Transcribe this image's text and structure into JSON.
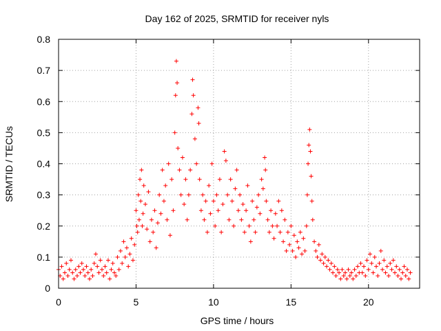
{
  "chart_data": {
    "type": "scatter",
    "title": "Day 162 of 2025, SRMTID for receiver nyls",
    "xlabel": "GPS time / hours",
    "ylabel": "SRMTID / TECUs",
    "xlim": [
      0,
      23.3
    ],
    "ylim": [
      0,
      0.8
    ],
    "xticks": [
      0,
      5,
      10,
      15,
      20
    ],
    "yticks": [
      0,
      0.1,
      0.2,
      0.3,
      0.4,
      0.5,
      0.6,
      0.7,
      0.8
    ],
    "xtick_labels": [
      "0",
      "5",
      "10",
      "15",
      "20"
    ],
    "ytick_labels": [
      "0",
      "0.1",
      "0.2",
      "0.3",
      "0.4",
      "0.5",
      "0.6",
      "0.7",
      "0.8"
    ],
    "grid": true,
    "marker": "+",
    "color": "#ff0000",
    "series": [
      {
        "name": "SRMTID",
        "points": [
          [
            0.0,
            0.06
          ],
          [
            0.1,
            0.04
          ],
          [
            0.2,
            0.07
          ],
          [
            0.3,
            0.03
          ],
          [
            0.4,
            0.05
          ],
          [
            0.5,
            0.08
          ],
          [
            0.6,
            0.04
          ],
          [
            0.7,
            0.06
          ],
          [
            0.8,
            0.09
          ],
          [
            0.9,
            0.05
          ],
          [
            1.0,
            0.03
          ],
          [
            1.1,
            0.06
          ],
          [
            1.2,
            0.04
          ],
          [
            1.3,
            0.07
          ],
          [
            1.4,
            0.05
          ],
          [
            1.5,
            0.08
          ],
          [
            1.6,
            0.06
          ],
          [
            1.7,
            0.04
          ],
          [
            1.8,
            0.07
          ],
          [
            1.9,
            0.05
          ],
          [
            2.0,
            0.03
          ],
          [
            2.1,
            0.06
          ],
          [
            2.2,
            0.04
          ],
          [
            2.3,
            0.08
          ],
          [
            2.4,
            0.11
          ],
          [
            2.5,
            0.07
          ],
          [
            2.6,
            0.05
          ],
          [
            2.7,
            0.09
          ],
          [
            2.8,
            0.06
          ],
          [
            2.9,
            0.04
          ],
          [
            3.0,
            0.07
          ],
          [
            3.1,
            0.05
          ],
          [
            3.2,
            0.09
          ],
          [
            3.3,
            0.03
          ],
          [
            3.4,
            0.06
          ],
          [
            3.5,
            0.08
          ],
          [
            3.6,
            0.05
          ],
          [
            3.7,
            0.04
          ],
          [
            3.8,
            0.1
          ],
          [
            3.9,
            0.06
          ],
          [
            4.0,
            0.12
          ],
          [
            4.1,
            0.08
          ],
          [
            4.2,
            0.15
          ],
          [
            4.3,
            0.1
          ],
          [
            4.4,
            0.13
          ],
          [
            4.5,
            0.07
          ],
          [
            4.6,
            0.11
          ],
          [
            4.7,
            0.16
          ],
          [
            4.8,
            0.09
          ],
          [
            4.9,
            0.14
          ],
          [
            5.0,
            0.25
          ],
          [
            5.05,
            0.2
          ],
          [
            5.1,
            0.18
          ],
          [
            5.15,
            0.3
          ],
          [
            5.2,
            0.22
          ],
          [
            5.25,
            0.35
          ],
          [
            5.3,
            0.28
          ],
          [
            5.35,
            0.38
          ],
          [
            5.4,
            0.2
          ],
          [
            5.45,
            0.24
          ],
          [
            5.5,
            0.33
          ],
          [
            5.6,
            0.27
          ],
          [
            5.7,
            0.19
          ],
          [
            5.8,
            0.31
          ],
          [
            5.9,
            0.15
          ],
          [
            6.0,
            0.22
          ],
          [
            6.1,
            0.18
          ],
          [
            6.2,
            0.25
          ],
          [
            6.3,
            0.13
          ],
          [
            6.4,
            0.21
          ],
          [
            6.5,
            0.3
          ],
          [
            6.6,
            0.24
          ],
          [
            6.7,
            0.38
          ],
          [
            6.8,
            0.28
          ],
          [
            6.9,
            0.33
          ],
          [
            7.0,
            0.22
          ],
          [
            7.1,
            0.4
          ],
          [
            7.2,
            0.17
          ],
          [
            7.3,
            0.35
          ],
          [
            7.4,
            0.25
          ],
          [
            7.5,
            0.5
          ],
          [
            7.55,
            0.62
          ],
          [
            7.6,
            0.73
          ],
          [
            7.65,
            0.66
          ],
          [
            7.7,
            0.45
          ],
          [
            7.8,
            0.38
          ],
          [
            7.9,
            0.3
          ],
          [
            8.0,
            0.42
          ],
          [
            8.1,
            0.27
          ],
          [
            8.2,
            0.35
          ],
          [
            8.3,
            0.22
          ],
          [
            8.4,
            0.3
          ],
          [
            8.5,
            0.38
          ],
          [
            8.6,
            0.56
          ],
          [
            8.65,
            0.67
          ],
          [
            8.7,
            0.62
          ],
          [
            8.8,
            0.48
          ],
          [
            8.9,
            0.4
          ],
          [
            9.0,
            0.58
          ],
          [
            9.05,
            0.53
          ],
          [
            9.1,
            0.35
          ],
          [
            9.2,
            0.25
          ],
          [
            9.3,
            0.3
          ],
          [
            9.4,
            0.22
          ],
          [
            9.5,
            0.28
          ],
          [
            9.6,
            0.18
          ],
          [
            9.7,
            0.33
          ],
          [
            9.8,
            0.24
          ],
          [
            9.9,
            0.4
          ],
          [
            10.0,
            0.28
          ],
          [
            10.1,
            0.2
          ],
          [
            10.2,
            0.3
          ],
          [
            10.3,
            0.25
          ],
          [
            10.4,
            0.35
          ],
          [
            10.5,
            0.18
          ],
          [
            10.6,
            0.27
          ],
          [
            10.7,
            0.44
          ],
          [
            10.8,
            0.41
          ],
          [
            10.9,
            0.3
          ],
          [
            11.0,
            0.22
          ],
          [
            11.1,
            0.35
          ],
          [
            11.2,
            0.28
          ],
          [
            11.3,
            0.2
          ],
          [
            11.4,
            0.32
          ],
          [
            11.5,
            0.38
          ],
          [
            11.6,
            0.25
          ],
          [
            11.7,
            0.3
          ],
          [
            11.8,
            0.22
          ],
          [
            11.9,
            0.27
          ],
          [
            12.0,
            0.18
          ],
          [
            12.1,
            0.25
          ],
          [
            12.2,
            0.33
          ],
          [
            12.3,
            0.2
          ],
          [
            12.4,
            0.15
          ],
          [
            12.5,
            0.28
          ],
          [
            12.6,
            0.22
          ],
          [
            12.7,
            0.18
          ],
          [
            12.8,
            0.26
          ],
          [
            12.9,
            0.3
          ],
          [
            13.0,
            0.24
          ],
          [
            13.1,
            0.35
          ],
          [
            13.2,
            0.32
          ],
          [
            13.3,
            0.42
          ],
          [
            13.35,
            0.38
          ],
          [
            13.4,
            0.28
          ],
          [
            13.5,
            0.22
          ],
          [
            13.6,
            0.18
          ],
          [
            13.7,
            0.25
          ],
          [
            13.8,
            0.2
          ],
          [
            13.9,
            0.16
          ],
          [
            14.0,
            0.24
          ],
          [
            14.1,
            0.2
          ],
          [
            14.2,
            0.28
          ],
          [
            14.3,
            0.18
          ],
          [
            14.4,
            0.25
          ],
          [
            14.5,
            0.15
          ],
          [
            14.6,
            0.22
          ],
          [
            14.7,
            0.12
          ],
          [
            14.8,
            0.18
          ],
          [
            14.9,
            0.14
          ],
          [
            15.0,
            0.2
          ],
          [
            15.1,
            0.12
          ],
          [
            15.2,
            0.17
          ],
          [
            15.3,
            0.1
          ],
          [
            15.4,
            0.15
          ],
          [
            15.5,
            0.13
          ],
          [
            15.6,
            0.18
          ],
          [
            15.7,
            0.11
          ],
          [
            15.8,
            0.16
          ],
          [
            15.9,
            0.12
          ],
          [
            16.0,
            0.2
          ],
          [
            16.05,
            0.3
          ],
          [
            16.1,
            0.4
          ],
          [
            16.15,
            0.46
          ],
          [
            16.2,
            0.51
          ],
          [
            16.25,
            0.44
          ],
          [
            16.3,
            0.36
          ],
          [
            16.35,
            0.28
          ],
          [
            16.4,
            0.22
          ],
          [
            16.5,
            0.15
          ],
          [
            16.6,
            0.12
          ],
          [
            16.7,
            0.1
          ],
          [
            16.8,
            0.14
          ],
          [
            16.9,
            0.09
          ],
          [
            17.0,
            0.11
          ],
          [
            17.1,
            0.08
          ],
          [
            17.2,
            0.1
          ],
          [
            17.3,
            0.07
          ],
          [
            17.4,
            0.09
          ],
          [
            17.5,
            0.06
          ],
          [
            17.6,
            0.08
          ],
          [
            17.7,
            0.05
          ],
          [
            17.8,
            0.07
          ],
          [
            17.9,
            0.04
          ],
          [
            18.0,
            0.06
          ],
          [
            18.1,
            0.05
          ],
          [
            18.2,
            0.03
          ],
          [
            18.3,
            0.06
          ],
          [
            18.4,
            0.04
          ],
          [
            18.5,
            0.05
          ],
          [
            18.6,
            0.03
          ],
          [
            18.7,
            0.06
          ],
          [
            18.8,
            0.04
          ],
          [
            18.9,
            0.05
          ],
          [
            19.0,
            0.03
          ],
          [
            19.1,
            0.06
          ],
          [
            19.2,
            0.04
          ],
          [
            19.3,
            0.07
          ],
          [
            19.4,
            0.05
          ],
          [
            19.5,
            0.08
          ],
          [
            19.6,
            0.05
          ],
          [
            19.7,
            0.07
          ],
          [
            19.8,
            0.04
          ],
          [
            19.9,
            0.09
          ],
          [
            20.0,
            0.06
          ],
          [
            20.1,
            0.11
          ],
          [
            20.2,
            0.08
          ],
          [
            20.3,
            0.05
          ],
          [
            20.4,
            0.1
          ],
          [
            20.5,
            0.07
          ],
          [
            20.6,
            0.04
          ],
          [
            20.7,
            0.08
          ],
          [
            20.8,
            0.12
          ],
          [
            20.9,
            0.06
          ],
          [
            21.0,
            0.09
          ],
          [
            21.1,
            0.05
          ],
          [
            21.2,
            0.07
          ],
          [
            21.3,
            0.04
          ],
          [
            21.4,
            0.08
          ],
          [
            21.5,
            0.06
          ],
          [
            21.6,
            0.09
          ],
          [
            21.7,
            0.05
          ],
          [
            21.8,
            0.07
          ],
          [
            21.9,
            0.04
          ],
          [
            22.0,
            0.06
          ],
          [
            22.1,
            0.03
          ],
          [
            22.2,
            0.05
          ],
          [
            22.3,
            0.07
          ],
          [
            22.4,
            0.04
          ],
          [
            22.5,
            0.06
          ],
          [
            22.6,
            0.03
          ],
          [
            22.7,
            0.05
          ]
        ]
      }
    ]
  }
}
